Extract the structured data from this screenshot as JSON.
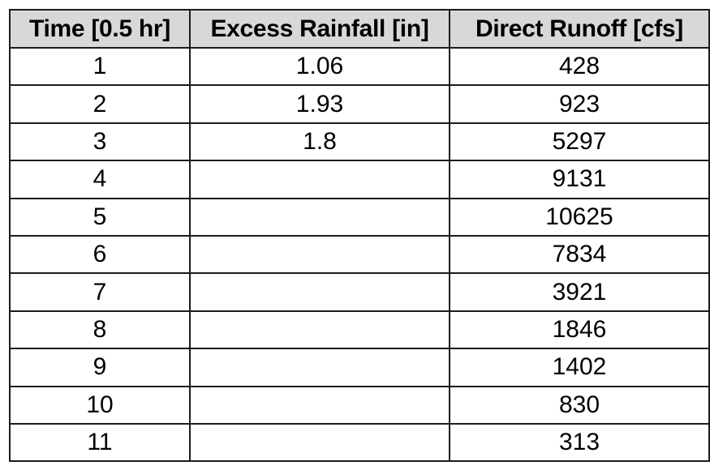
{
  "table": {
    "headers": [
      "Time [0.5 hr]",
      "Excess Rainfall [in]",
      "Direct Runoff [cfs]"
    ],
    "rows": [
      [
        "1",
        "1.06",
        "428"
      ],
      [
        "2",
        "1.93",
        "923"
      ],
      [
        "3",
        "1.8",
        "5297"
      ],
      [
        "4",
        "",
        "9131"
      ],
      [
        "5",
        "",
        "10625"
      ],
      [
        "6",
        "",
        "7834"
      ],
      [
        "7",
        "",
        "3921"
      ],
      [
        "8",
        "",
        "1846"
      ],
      [
        "9",
        "",
        "1402"
      ],
      [
        "10",
        "",
        "830"
      ],
      [
        "11",
        "",
        "313"
      ]
    ]
  },
  "colors": {
    "header_background": "#d8d8d8",
    "border": "#1c1c1c",
    "text": "#000000"
  }
}
